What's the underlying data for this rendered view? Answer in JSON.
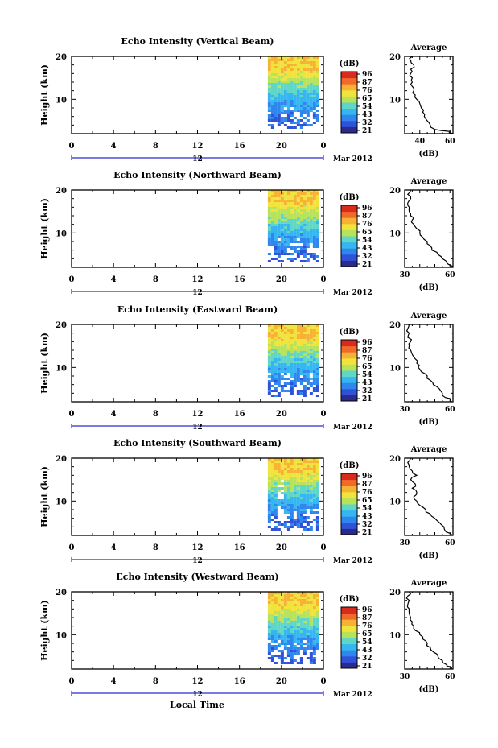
{
  "figure": {
    "xlabel": "Local Time",
    "date_label": "Mar 2012",
    "date_tick": "12",
    "colorbar_unit": "(dB)",
    "colorbar_ticks": [
      "96",
      "87",
      "76",
      "65",
      "54",
      "43",
      "32",
      "21"
    ],
    "colormap": [
      "#2b2b8f",
      "#2f52d8",
      "#2f86ee",
      "#35b6f0",
      "#5fd6c6",
      "#b7e25c",
      "#f0e43c",
      "#f7b133",
      "#f26a2a",
      "#d92a1e"
    ],
    "average_title": "Average",
    "average_xlabel": "(dB)"
  },
  "chart_data": [
    {
      "type": "heatmap",
      "title": "Echo Intensity (Vertical Beam)",
      "xlabel": "Local Time",
      "ylabel": "Height (km)",
      "x_ticks": [
        "0",
        "4",
        "8",
        "12",
        "16",
        "20",
        "0"
      ],
      "y_ticks": [
        "10",
        "20"
      ],
      "xlim": [
        0,
        24
      ],
      "ylim": [
        2,
        20
      ],
      "data_start_hour": 18.7,
      "colorbar_range_db": [
        21,
        96
      ],
      "average_profile": {
        "title": "Average",
        "xlabel": "(dB)",
        "x_ticks": [
          "40",
          "60"
        ],
        "xlim": [
          30,
          62
        ],
        "y_ticks": [
          "10",
          "20"
        ],
        "ylim": [
          2,
          20
        ],
        "height_km": [
          2,
          2.5,
          3,
          4,
          5,
          6,
          7,
          8,
          9,
          10,
          11,
          12,
          13,
          14,
          15,
          16,
          17,
          18,
          19,
          20
        ],
        "db": [
          62,
          60,
          50,
          47,
          45,
          43,
          42,
          41,
          40,
          38,
          37,
          36,
          35,
          35,
          35,
          34,
          34,
          36,
          34,
          35
        ]
      }
    },
    {
      "type": "heatmap",
      "title": "Echo Intensity (Northward Beam)",
      "xlabel": "Local Time",
      "ylabel": "Height (km)",
      "x_ticks": [
        "0",
        "4",
        "8",
        "12",
        "16",
        "20",
        "0"
      ],
      "y_ticks": [
        "10",
        "20"
      ],
      "xlim": [
        0,
        24
      ],
      "ylim": [
        2,
        20
      ],
      "data_start_hour": 18.7,
      "colorbar_range_db": [
        21,
        96
      ],
      "average_profile": {
        "title": "Average",
        "xlabel": "(dB)",
        "x_ticks": [
          "30",
          "60"
        ],
        "xlim": [
          30,
          62
        ],
        "y_ticks": [
          "10",
          "20"
        ],
        "ylim": [
          2,
          20
        ],
        "height_km": [
          2,
          2.5,
          3,
          4,
          5,
          6,
          7,
          8,
          9,
          10,
          11,
          12,
          13,
          14,
          15,
          16,
          17,
          18,
          19,
          20
        ],
        "db": [
          61,
          60,
          58,
          55,
          52,
          48,
          47,
          45,
          42,
          40,
          38,
          36,
          35,
          34,
          33,
          33,
          32,
          34,
          32,
          34
        ]
      }
    },
    {
      "type": "heatmap",
      "title": "Echo Intensity (Eastward Beam)",
      "xlabel": "Local Time",
      "ylabel": "Height (km)",
      "x_ticks": [
        "0",
        "4",
        "8",
        "12",
        "16",
        "20",
        "0"
      ],
      "y_ticks": [
        "10",
        "20"
      ],
      "xlim": [
        0,
        24
      ],
      "ylim": [
        2,
        20
      ],
      "data_start_hour": 18.7,
      "colorbar_range_db": [
        21,
        96
      ],
      "average_profile": {
        "title": "Average",
        "xlabel": "(dB)",
        "x_ticks": [
          "30",
          "60"
        ],
        "xlim": [
          30,
          62
        ],
        "y_ticks": [
          "10",
          "20"
        ],
        "ylim": [
          2,
          20
        ],
        "height_km": [
          2,
          2.5,
          3,
          4,
          5,
          6,
          7,
          8,
          9,
          10,
          11,
          12,
          13,
          14,
          15,
          16,
          17,
          18,
          19,
          20
        ],
        "db": [
          61,
          60,
          57,
          55,
          53,
          49,
          47,
          45,
          41,
          39,
          38,
          37,
          35,
          34,
          33,
          34,
          32,
          33,
          32,
          33
        ]
      }
    },
    {
      "type": "heatmap",
      "title": "Echo Intensity (Southward Beam)",
      "xlabel": "Local Time",
      "ylabel": "Height (km)",
      "x_ticks": [
        "0",
        "4",
        "8",
        "12",
        "16",
        "20",
        "0"
      ],
      "y_ticks": [
        "10",
        "20"
      ],
      "xlim": [
        0,
        24
      ],
      "ylim": [
        2,
        20
      ],
      "data_start_hour": 18.7,
      "colorbar_range_db": [
        21,
        96
      ],
      "average_profile": {
        "title": "Average",
        "xlabel": "(dB)",
        "x_ticks": [
          "30",
          "60"
        ],
        "xlim": [
          30,
          62
        ],
        "y_ticks": [
          "10",
          "20"
        ],
        "ylim": [
          2,
          20
        ],
        "height_km": [
          2,
          2.5,
          3,
          4,
          5,
          6,
          7,
          8,
          9,
          10,
          11,
          12,
          13,
          14,
          15,
          16,
          17,
          18,
          19,
          20
        ],
        "db": [
          61,
          60,
          57,
          56,
          53,
          50,
          47,
          44,
          40,
          38,
          36,
          38,
          35,
          37,
          34,
          38,
          35,
          33,
          32,
          34
        ]
      }
    },
    {
      "type": "heatmap",
      "title": "Echo Intensity (Westward Beam)",
      "xlabel": "Local Time",
      "ylabel": "Height (km)",
      "x_ticks": [
        "0",
        "4",
        "8",
        "12",
        "16",
        "20",
        "0"
      ],
      "y_ticks": [
        "10",
        "20"
      ],
      "xlim": [
        0,
        24
      ],
      "ylim": [
        2,
        20
      ],
      "data_start_hour": 18.7,
      "colorbar_range_db": [
        21,
        96
      ],
      "average_profile": {
        "title": "Average",
        "xlabel": "(dB)",
        "x_ticks": [
          "30",
          "60"
        ],
        "xlim": [
          30,
          62
        ],
        "y_ticks": [
          "10",
          "20"
        ],
        "ylim": [
          2,
          20
        ],
        "height_km": [
          2,
          2.5,
          3,
          4,
          5,
          6,
          7,
          8,
          9,
          10,
          11,
          12,
          13,
          14,
          15,
          16,
          17,
          18,
          19,
          20
        ],
        "db": [
          61,
          60,
          58,
          55,
          52,
          49,
          47,
          45,
          42,
          40,
          37,
          36,
          35,
          34,
          33,
          33,
          32,
          33,
          32,
          33
        ]
      }
    }
  ]
}
